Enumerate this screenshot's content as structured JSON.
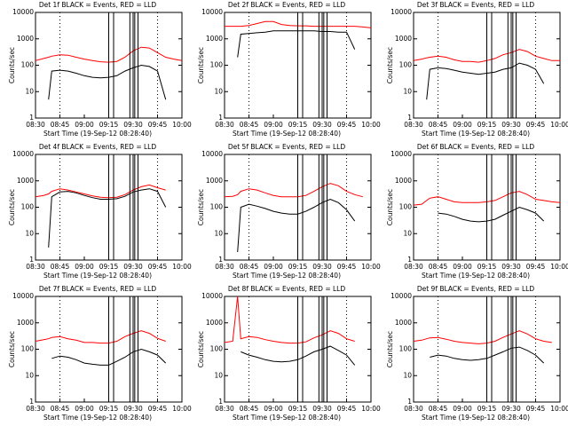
{
  "chart_data": [
    {
      "type": "line",
      "title": "Det 1f BLACK = Events, RED = LLD",
      "xlabel": "Start Time (19-Sep-12 08:28:40)",
      "ylabel": "Counts/sec",
      "log_y": true,
      "xlim": [
        "08:30",
        "10:00"
      ],
      "xticks": [
        "08:30",
        "08:45",
        "09:00",
        "09:15",
        "09:30",
        "09:45",
        "10:00"
      ],
      "ylim": [
        1,
        10000
      ],
      "yticks": [
        1,
        10,
        100,
        1000,
        10000
      ],
      "x": [
        "08:30",
        "08:35",
        "08:38",
        "08:40",
        "08:45",
        "08:50",
        "08:55",
        "09:00",
        "09:05",
        "09:10",
        "09:15",
        "09:20",
        "09:25",
        "09:30",
        "09:35",
        "09:40",
        "09:45",
        "09:50",
        "09:55",
        "10:00"
      ],
      "series": [
        {
          "name": "LLD",
          "color": "#ff0000",
          "values": [
            150,
            180,
            200,
            220,
            250,
            240,
            200,
            170,
            150,
            135,
            130,
            140,
            200,
            350,
            480,
            450,
            300,
            200,
            170,
            150
          ]
        },
        {
          "name": "Events",
          "color": "#000000",
          "values": [
            null,
            null,
            5,
            60,
            65,
            60,
            50,
            40,
            35,
            33,
            35,
            40,
            60,
            80,
            100,
            90,
            60,
            5,
            null,
            null
          ]
        }
      ],
      "vlines": [
        "09:15",
        "09:18",
        "09:28",
        "09:30",
        "09:31",
        "09:33"
      ],
      "dotted": [
        "08:45",
        "09:45"
      ]
    },
    {
      "type": "line",
      "title": "Det 2f BLACK = Events, RED = LLD",
      "xlabel": "Start Time (19-Sep-12 08:28:40)",
      "ylabel": "Counts/sec",
      "log_y": true,
      "xlim": [
        "08:30",
        "10:00"
      ],
      "xticks": [
        "08:30",
        "08:45",
        "09:00",
        "09:15",
        "09:30",
        "09:45",
        "10:00"
      ],
      "ylim": [
        1,
        10000
      ],
      "yticks": [
        1,
        10,
        100,
        1000,
        10000
      ],
      "x": [
        "08:30",
        "08:35",
        "08:38",
        "08:40",
        "08:45",
        "08:50",
        "08:55",
        "09:00",
        "09:05",
        "09:10",
        "09:15",
        "09:20",
        "09:25",
        "09:30",
        "09:35",
        "09:40",
        "09:45",
        "09:50",
        "09:55",
        "10:00"
      ],
      "series": [
        {
          "name": "LLD",
          "color": "#ff0000",
          "values": [
            3000,
            3000,
            3000,
            3000,
            3200,
            3800,
            4500,
            4500,
            3500,
            3200,
            3100,
            3100,
            3000,
            3000,
            3000,
            3000,
            3000,
            3000,
            2800,
            2600
          ]
        },
        {
          "name": "Events",
          "color": "#000000",
          "values": [
            null,
            null,
            200,
            1500,
            1600,
            1700,
            1800,
            2000,
            2000,
            2000,
            2000,
            2000,
            2000,
            1900,
            1900,
            1800,
            1800,
            400,
            null,
            null
          ]
        }
      ],
      "vlines": [
        "09:15",
        "09:18",
        "09:28",
        "09:30",
        "09:31",
        "09:33"
      ],
      "dotted": [
        "08:45",
        "09:45"
      ]
    },
    {
      "type": "line",
      "title": "Det 3f BLACK = Events, RED = LLD",
      "xlabel": "Start Time (19-Sep-12 08:28:40)",
      "ylabel": "Counts/sec",
      "log_y": true,
      "xlim": [
        "08:30",
        "10:00"
      ],
      "xticks": [
        "08:30",
        "08:45",
        "09:00",
        "09:15",
        "09:30",
        "09:45",
        "10:00"
      ],
      "ylim": [
        1,
        10000
      ],
      "yticks": [
        1,
        10,
        100,
        1000,
        10000
      ],
      "x": [
        "08:30",
        "08:35",
        "08:38",
        "08:40",
        "08:45",
        "08:50",
        "08:55",
        "09:00",
        "09:05",
        "09:10",
        "09:15",
        "09:20",
        "09:25",
        "09:30",
        "09:35",
        "09:40",
        "09:45",
        "09:50",
        "09:55",
        "10:00"
      ],
      "series": [
        {
          "name": "LLD",
          "color": "#ff0000",
          "values": [
            150,
            170,
            190,
            200,
            220,
            200,
            160,
            140,
            140,
            130,
            150,
            180,
            250,
            300,
            400,
            330,
            220,
            180,
            150,
            150
          ]
        },
        {
          "name": "Events",
          "color": "#000000",
          "values": [
            null,
            null,
            5,
            70,
            80,
            75,
            65,
            55,
            50,
            45,
            50,
            55,
            70,
            80,
            120,
            100,
            70,
            20,
            null,
            null
          ]
        }
      ],
      "vlines": [
        "09:15",
        "09:18",
        "09:28",
        "09:30",
        "09:31",
        "09:33"
      ],
      "dotted": [
        "08:45",
        "09:45"
      ]
    },
    {
      "type": "line",
      "title": "Det 4f BLACK = Events, RED = LLD",
      "xlabel": "Start Time (19-Sep-12 08:28:40)",
      "ylabel": "Counts/sec",
      "log_y": true,
      "xlim": [
        "08:30",
        "10:00"
      ],
      "xticks": [
        "08:30",
        "08:45",
        "09:00",
        "09:15",
        "09:30",
        "09:45",
        "10:00"
      ],
      "ylim": [
        1,
        10000
      ],
      "yticks": [
        1,
        10,
        100,
        1000,
        10000
      ],
      "x": [
        "08:30",
        "08:35",
        "08:38",
        "08:40",
        "08:45",
        "08:50",
        "08:55",
        "09:00",
        "09:05",
        "09:10",
        "09:15",
        "09:20",
        "09:25",
        "09:30",
        "09:35",
        "09:40",
        "09:45",
        "09:50",
        "09:55",
        "10:00"
      ],
      "series": [
        {
          "name": "LLD",
          "color": "#ff0000",
          "values": [
            250,
            280,
            320,
            400,
            500,
            450,
            380,
            320,
            270,
            240,
            230,
            240,
            300,
            450,
            600,
            700,
            550,
            450,
            null,
            null
          ]
        },
        {
          "name": "Events",
          "color": "#000000",
          "values": [
            null,
            null,
            3,
            250,
            380,
            400,
            350,
            280,
            230,
            200,
            200,
            210,
            260,
            380,
            450,
            500,
            400,
            100,
            null,
            null
          ]
        }
      ],
      "vlines": [
        "09:15",
        "09:18",
        "09:28",
        "09:30",
        "09:31",
        "09:33"
      ],
      "dotted": [
        "08:45",
        "09:45"
      ]
    },
    {
      "type": "line",
      "title": "Det 5f BLACK = Events, RED = LLD",
      "xlabel": "Start Time (19-Sep-12 08:28:40)",
      "ylabel": "Counts/sec",
      "log_y": true,
      "xlim": [
        "08:30",
        "10:00"
      ],
      "xticks": [
        "08:30",
        "08:45",
        "09:00",
        "09:15",
        "09:30",
        "09:45",
        "10:00"
      ],
      "ylim": [
        1,
        10000
      ],
      "yticks": [
        1,
        10,
        100,
        1000,
        10000
      ],
      "x": [
        "08:30",
        "08:35",
        "08:38",
        "08:40",
        "08:45",
        "08:50",
        "08:55",
        "09:00",
        "09:05",
        "09:10",
        "09:15",
        "09:20",
        "09:25",
        "09:30",
        "09:35",
        "09:40",
        "09:45",
        "09:50",
        "09:55",
        "10:00"
      ],
      "series": [
        {
          "name": "LLD",
          "color": "#ff0000",
          "values": [
            250,
            260,
            300,
            400,
            500,
            450,
            350,
            280,
            250,
            250,
            250,
            280,
            400,
            600,
            800,
            650,
            400,
            300,
            250,
            null
          ]
        },
        {
          "name": "Events",
          "color": "#000000",
          "values": [
            null,
            null,
            2,
            100,
            130,
            110,
            90,
            70,
            60,
            55,
            55,
            70,
            100,
            150,
            200,
            150,
            80,
            30,
            null,
            null
          ]
        }
      ],
      "vlines": [
        "09:15",
        "09:18",
        "09:28",
        "09:30",
        "09:31",
        "09:33"
      ],
      "dotted": [
        "08:45",
        "09:45"
      ]
    },
    {
      "type": "line",
      "title": "Det 6f BLACK = Events, RED = LLD",
      "xlabel": "Start Time (19-Sep-12 08:28:40)",
      "ylabel": "Counts/sec",
      "log_y": true,
      "xlim": [
        "08:30",
        "10:00"
      ],
      "xticks": [
        "08:30",
        "08:45",
        "09:00",
        "09:15",
        "09:30",
        "09:45",
        "10:00"
      ],
      "ylim": [
        1,
        10000
      ],
      "yticks": [
        1,
        10,
        100,
        1000,
        10000
      ],
      "x": [
        "08:30",
        "08:35",
        "08:38",
        "08:40",
        "08:45",
        "08:50",
        "08:55",
        "09:00",
        "09:05",
        "09:10",
        "09:15",
        "09:20",
        "09:25",
        "09:30",
        "09:35",
        "09:40",
        "09:45",
        "09:50",
        "09:55",
        "10:00"
      ],
      "series": [
        {
          "name": "LLD",
          "color": "#ff0000",
          "values": [
            120,
            130,
            180,
            220,
            250,
            200,
            160,
            150,
            150,
            150,
            160,
            180,
            250,
            350,
            400,
            300,
            200,
            180,
            160,
            150
          ]
        },
        {
          "name": "Events",
          "color": "#000000",
          "values": [
            null,
            null,
            null,
            null,
            60,
            55,
            45,
            35,
            30,
            28,
            30,
            35,
            50,
            70,
            100,
            80,
            60,
            30,
            null,
            null
          ]
        }
      ],
      "vlines": [
        "09:15",
        "09:18",
        "09:28",
        "09:30",
        "09:31",
        "09:33"
      ],
      "dotted": [
        "08:45",
        "09:45"
      ]
    },
    {
      "type": "line",
      "title": "Det 7f BLACK = Events, RED = LLD",
      "xlabel": "Start Time (19-Sep-12 08:28:40)",
      "ylabel": "Counts/sec",
      "log_y": true,
      "xlim": [
        "08:30",
        "10:00"
      ],
      "xticks": [
        "08:30",
        "08:45",
        "09:00",
        "09:15",
        "09:30",
        "09:45",
        "10:00"
      ],
      "ylim": [
        1,
        10000
      ],
      "yticks": [
        1,
        10,
        100,
        1000,
        10000
      ],
      "x": [
        "08:30",
        "08:35",
        "08:38",
        "08:40",
        "08:45",
        "08:50",
        "08:55",
        "09:00",
        "09:05",
        "09:10",
        "09:15",
        "09:20",
        "09:25",
        "09:30",
        "09:35",
        "09:40",
        "09:45",
        "09:50",
        "09:55",
        "10:00"
      ],
      "series": [
        {
          "name": "LLD",
          "color": "#ff0000",
          "values": [
            200,
            230,
            250,
            280,
            300,
            250,
            220,
            180,
            180,
            170,
            170,
            200,
            300,
            400,
            500,
            400,
            260,
            200,
            null,
            null
          ]
        },
        {
          "name": "Events",
          "color": "#000000",
          "values": [
            null,
            null,
            null,
            45,
            55,
            50,
            40,
            30,
            27,
            25,
            25,
            35,
            50,
            80,
            100,
            80,
            60,
            30,
            null,
            null
          ]
        }
      ],
      "vlines": [
        "09:15",
        "09:18",
        "09:28",
        "09:30",
        "09:31",
        "09:33"
      ],
      "dotted": [
        "08:45",
        "09:45"
      ]
    },
    {
      "type": "line",
      "title": "Det 8f BLACK = Events, RED = LLD",
      "xlabel": "Start Time (19-Sep-12 08:28:40)",
      "ylabel": "Counts/sec",
      "log_y": true,
      "xlim": [
        "08:30",
        "10:00"
      ],
      "xticks": [
        "08:30",
        "08:45",
        "09:00",
        "09:15",
        "09:30",
        "09:45",
        "10:00"
      ],
      "ylim": [
        1,
        10000
      ],
      "yticks": [
        1,
        10,
        100,
        1000,
        10000
      ],
      "x": [
        "08:30",
        "08:35",
        "08:38",
        "08:40",
        "08:45",
        "08:50",
        "08:55",
        "09:00",
        "09:05",
        "09:10",
        "09:15",
        "09:20",
        "09:25",
        "09:30",
        "09:35",
        "09:40",
        "09:45",
        "09:50",
        "09:55",
        "10:00"
      ],
      "series": [
        {
          "name": "LLD",
          "color": "#ff0000",
          "values": [
            180,
            200,
            10000,
            250,
            300,
            280,
            230,
            200,
            180,
            170,
            170,
            190,
            270,
            350,
            500,
            400,
            250,
            200,
            null,
            null
          ]
        },
        {
          "name": "Events",
          "color": "#000000",
          "values": [
            null,
            null,
            null,
            80,
            60,
            50,
            40,
            35,
            33,
            35,
            40,
            55,
            80,
            100,
            130,
            90,
            60,
            25,
            null,
            null
          ]
        }
      ],
      "vlines": [
        "09:15",
        "09:18",
        "09:28",
        "09:30",
        "09:31",
        "09:33"
      ],
      "dotted": [
        "08:45",
        "09:45"
      ]
    },
    {
      "type": "line",
      "title": "Det 9f BLACK = Events, RED = LLD",
      "xlabel": "Start Time (19-Sep-12 08:28:40)",
      "ylabel": "Counts/sec",
      "log_y": true,
      "xlim": [
        "08:30",
        "10:00"
      ],
      "xticks": [
        "08:30",
        "08:45",
        "09:00",
        "09:15",
        "09:30",
        "09:45",
        "10:00"
      ],
      "ylim": [
        1,
        10000
      ],
      "yticks": [
        1,
        10,
        100,
        1000,
        10000
      ],
      "x": [
        "08:30",
        "08:35",
        "08:38",
        "08:40",
        "08:45",
        "08:50",
        "08:55",
        "09:00",
        "09:05",
        "09:10",
        "09:15",
        "09:20",
        "09:25",
        "09:30",
        "09:35",
        "09:40",
        "09:45",
        "09:50",
        "09:55",
        "10:00"
      ],
      "series": [
        {
          "name": "LLD",
          "color": "#ff0000",
          "values": [
            200,
            220,
            250,
            270,
            280,
            240,
            200,
            180,
            170,
            160,
            170,
            200,
            280,
            380,
            500,
            380,
            250,
            200,
            180,
            null
          ]
        },
        {
          "name": "Events",
          "color": "#000000",
          "values": [
            null,
            null,
            null,
            50,
            60,
            55,
            45,
            40,
            38,
            40,
            45,
            60,
            80,
            110,
            120,
            90,
            60,
            30,
            null,
            null
          ]
        }
      ],
      "vlines": [
        "09:15",
        "09:18",
        "09:28",
        "09:30",
        "09:31",
        "09:33"
      ],
      "dotted": [
        "08:45",
        "09:45"
      ]
    }
  ]
}
